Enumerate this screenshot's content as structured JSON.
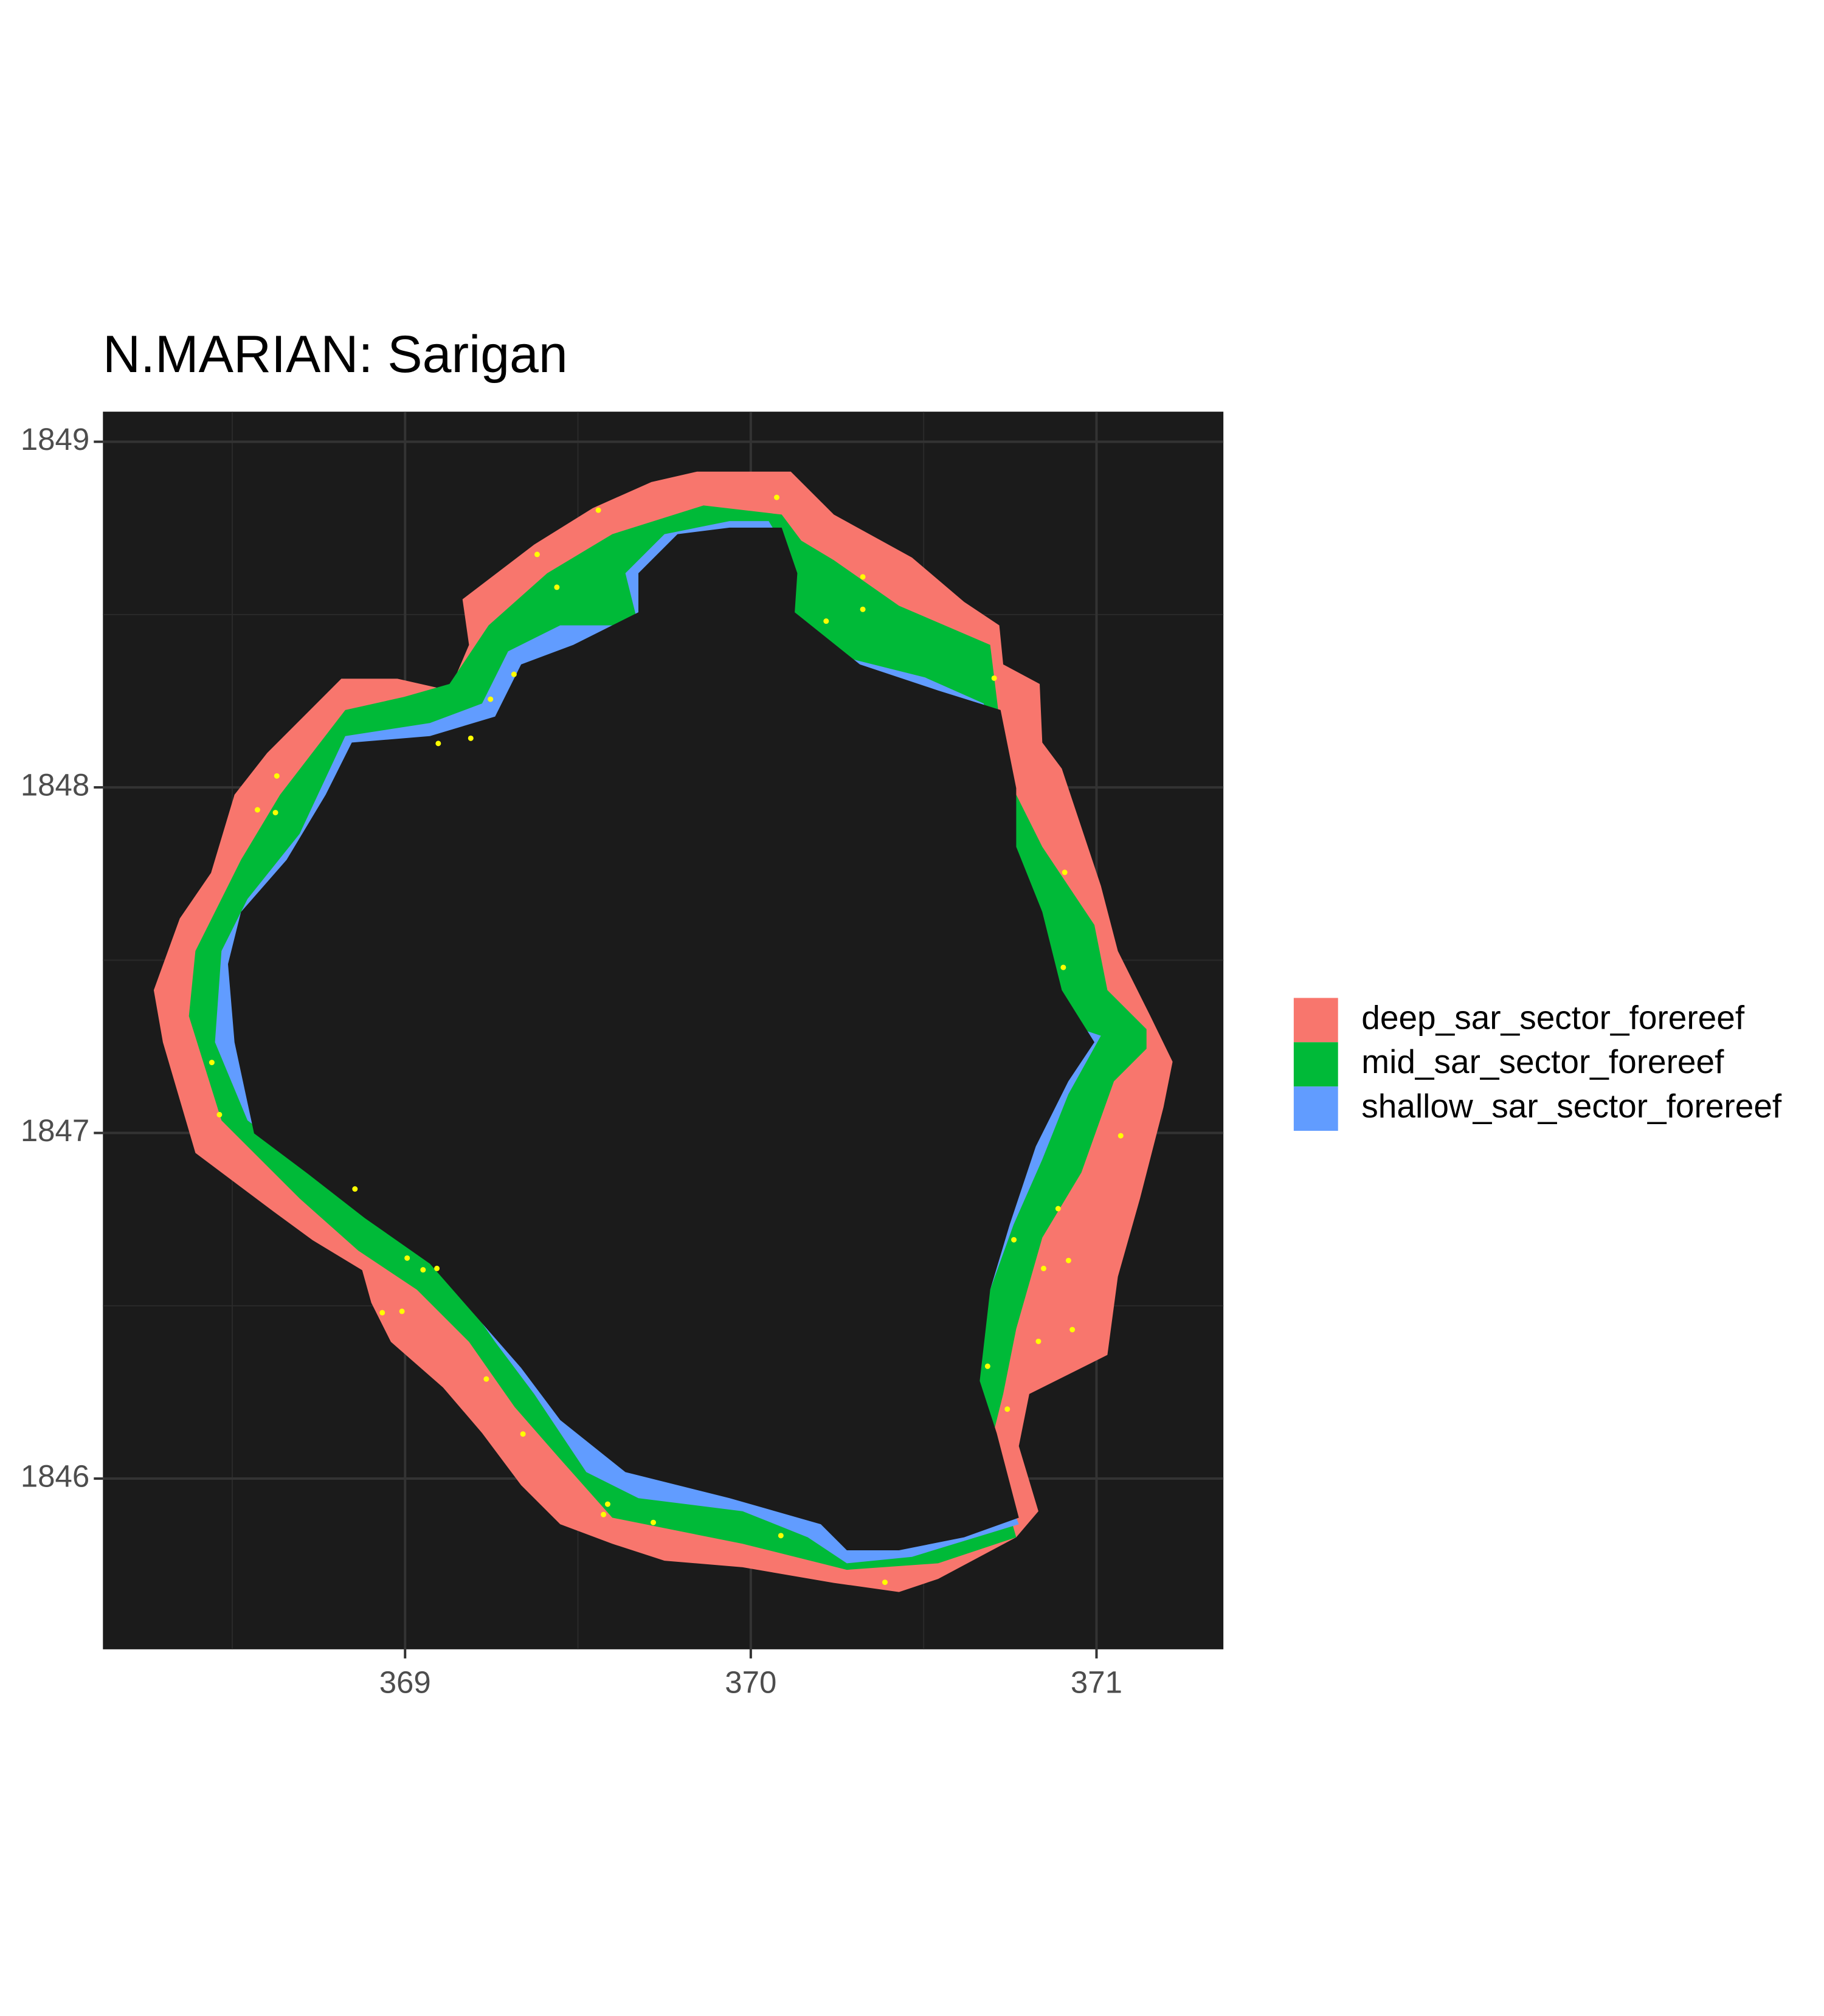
{
  "chart_data": {
    "type": "map",
    "title": "N.MARIAN: Sarigan",
    "xlim": [
      368.126,
      371.367
    ],
    "ylim": [
      1845.506,
      1849.087
    ],
    "xticks": [
      369,
      370,
      371
    ],
    "yticks": [
      1846,
      1847,
      1848,
      1849
    ],
    "grid": true,
    "panel_color": "#1b1b1b",
    "legend_position": "right",
    "layers": [
      {
        "name": "deep_sar_sector_forereef",
        "color": "#f8766d"
      },
      {
        "name": "mid_sar_sector_forereef",
        "color": "#00ba38"
      },
      {
        "name": "shallow_sar_sector_forereef",
        "color": "#619cff"
      }
    ],
    "points": {
      "color": "#ffff00",
      "x": [
        370.075,
        369.559,
        369.382,
        369.439,
        370.324,
        370.324,
        370.218,
        370.704,
        369.315,
        369.247,
        369.19,
        369.096,
        368.629,
        368.573,
        368.625,
        370.908,
        370.904,
        368.441,
        368.463,
        371.07,
        368.855,
        370.889,
        370.761,
        369.006,
        369.052,
        369.092,
        370.919,
        370.847,
        368.934,
        368.991,
        370.93,
        370.832,
        369.235,
        370.685,
        370.742,
        369.341,
        369.586,
        369.574,
        369.718,
        370.087,
        370.388
      ],
      "y": [
        1848.839,
        1848.802,
        1848.674,
        1848.579,
        1848.609,
        1848.515,
        1848.481,
        1848.316,
        1848.327,
        1848.255,
        1848.142,
        1848.127,
        1848.033,
        1847.935,
        1847.927,
        1847.754,
        1847.479,
        1847.204,
        1847.053,
        1846.992,
        1846.838,
        1846.781,
        1846.691,
        1846.638,
        1846.604,
        1846.608,
        1846.631,
        1846.608,
        1846.48,
        1846.484,
        1846.431,
        1846.397,
        1846.288,
        1846.325,
        1846.201,
        1846.129,
        1845.926,
        1845.896,
        1845.873,
        1845.835,
        1845.7
      ]
    }
  }
}
